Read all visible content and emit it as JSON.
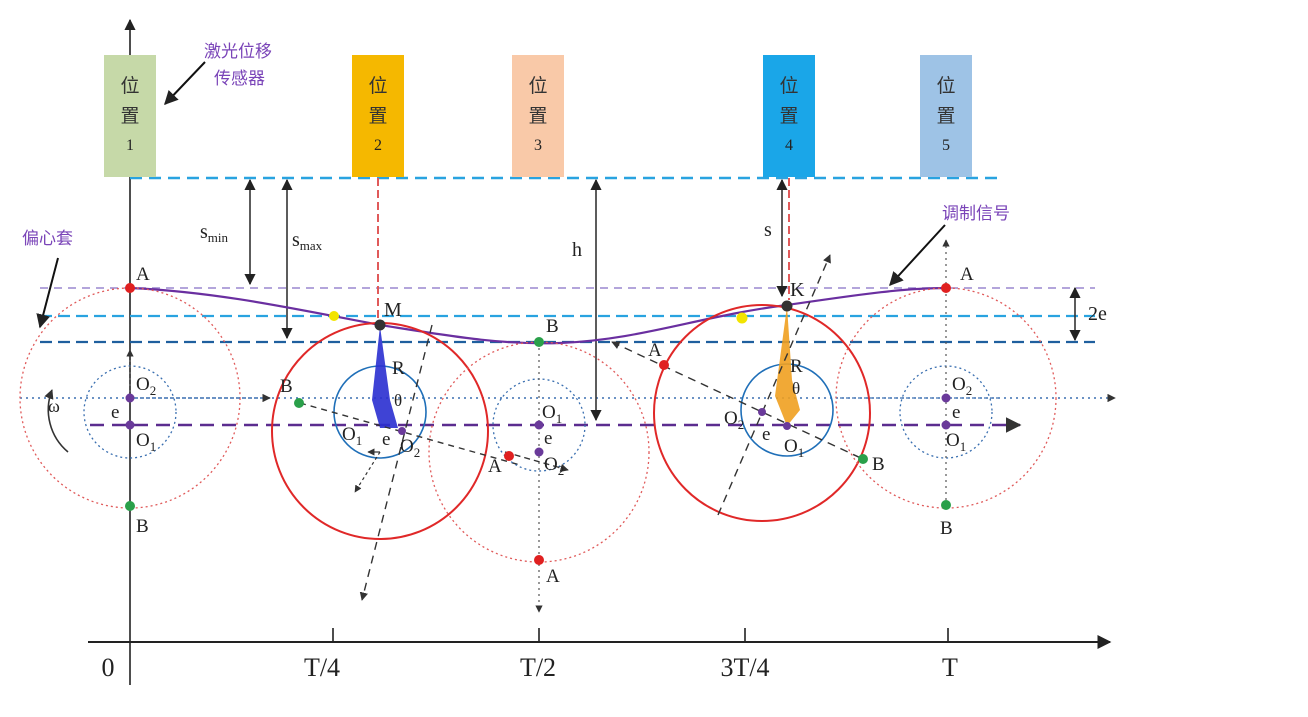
{
  "sensors": [
    {
      "line1": "位",
      "line2": "置",
      "num": "1",
      "color": "#c6d9a8"
    },
    {
      "line1": "位",
      "line2": "置",
      "num": "2",
      "color": "#f5b800"
    },
    {
      "line1": "位",
      "line2": "置",
      "num": "3",
      "color": "#f9c9a8"
    },
    {
      "line1": "位",
      "line2": "置",
      "num": "4",
      "color": "#1aa6e8"
    },
    {
      "line1": "位",
      "line2": "置",
      "num": "5",
      "color": "#9ec3e6"
    }
  ],
  "labels": {
    "laser_sensor_1": "激光位移",
    "laser_sensor_2": "传感器",
    "eccentric_sleeve": "偏心套",
    "modulation_signal": "调制信号",
    "omega": "ω",
    "s_min": "s",
    "s_min_sub": "min",
    "s_max": "s",
    "s_max_sub": "max",
    "h": "h",
    "s": "s",
    "two_e": "2e",
    "M": "M",
    "K": "K",
    "R": "R",
    "theta": "θ",
    "e": "e",
    "A": "A",
    "B": "B",
    "O": "O",
    "sub1": "1",
    "sub2": "2"
  },
  "axis": {
    "ticks": [
      "0",
      "T/4",
      "T/2",
      "3T/4",
      "T"
    ]
  },
  "colors": {
    "top_line": "#29a3e0",
    "guide_purple": "#9a87cf",
    "mid_line": "#29a3e0",
    "low_line": "#1f5f9e",
    "axis_purple": "#5b2c8f",
    "curve": "#6a2fa0",
    "red_circle": "#e02828",
    "blue_circle": "#1f6fb8",
    "dot_red": "#e02020",
    "dot_green": "#2aa04a",
    "dot_purple": "#6a3a9a",
    "label_purple": "#7a44b8"
  }
}
